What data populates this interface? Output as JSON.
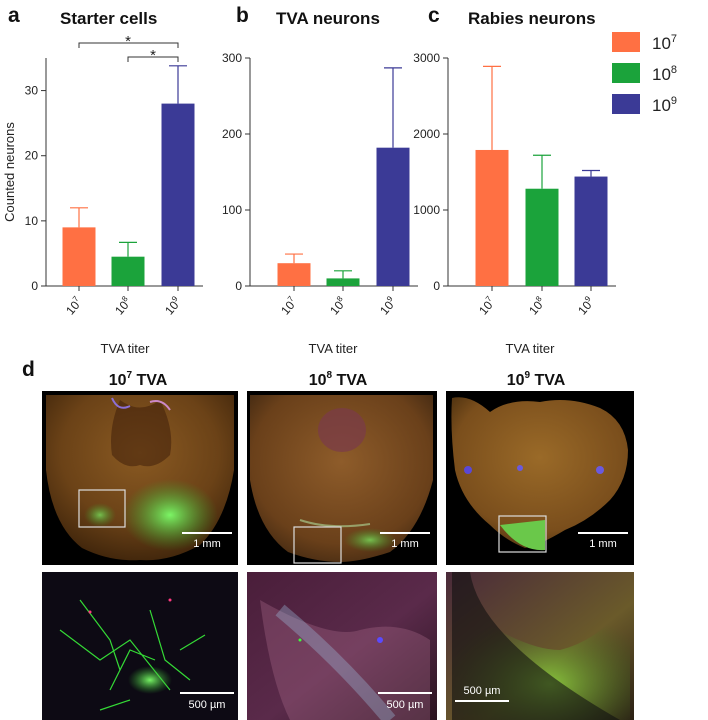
{
  "panels": [
    {
      "letter": "a",
      "title": "Starter cells"
    },
    {
      "letter": "b",
      "title": "TVA neurons"
    },
    {
      "letter": "c",
      "title": "Rabies neurons"
    }
  ],
  "ylabel": "Counted neurons",
  "xlabel": "TVA titer",
  "legend": [
    {
      "base": "10",
      "exp": "7",
      "color": "#FF7043"
    },
    {
      "base": "10",
      "exp": "8",
      "color": "#1BA33B"
    },
    {
      "base": "10",
      "exp": "9",
      "color": "#3B3A96"
    }
  ],
  "significance": [
    "*",
    "*"
  ],
  "chart_data": [
    {
      "type": "bar",
      "title": "Starter cells",
      "categories": [
        "10^7",
        "10^8",
        "10^9"
      ],
      "values": [
        9,
        4.5,
        28
      ],
      "errors": [
        3,
        2.2,
        5.8
      ],
      "ylabel": "Counted neurons",
      "xlabel": "TVA titer",
      "ylim": [
        0,
        35
      ],
      "yticks": [
        0,
        10,
        20,
        30
      ]
    },
    {
      "type": "bar",
      "title": "TVA neurons",
      "categories": [
        "10^7",
        "10^8",
        "10^9"
      ],
      "values": [
        30,
        10,
        182
      ],
      "errors": [
        12,
        10,
        105
      ],
      "ylabel": "",
      "xlabel": "TVA titer",
      "ylim": [
        0,
        300
      ],
      "yticks": [
        0,
        100,
        200,
        300
      ]
    },
    {
      "type": "bar",
      "title": "Rabies neurons",
      "categories": [
        "10^7",
        "10^8",
        "10^9"
      ],
      "values": [
        1790,
        1280,
        1440
      ],
      "errors": [
        1100,
        440,
        80
      ],
      "ylabel": "",
      "xlabel": "TVA titer",
      "ylim": [
        0,
        3000
      ],
      "yticks": [
        0,
        1000,
        2000,
        3000
      ]
    }
  ],
  "panel_d": {
    "letter": "d",
    "columns": [
      {
        "base": "10",
        "exp": "7",
        "suffix": " TVA",
        "scale_top": "1 mm",
        "scale_bottom": "500 µm"
      },
      {
        "base": "10",
        "exp": "8",
        "suffix": " TVA",
        "scale_top": "1 mm",
        "scale_bottom": "500 µm"
      },
      {
        "base": "10",
        "exp": "9",
        "suffix": " TVA",
        "scale_top": "1 mm",
        "scale_bottom": "500 µm"
      }
    ]
  }
}
